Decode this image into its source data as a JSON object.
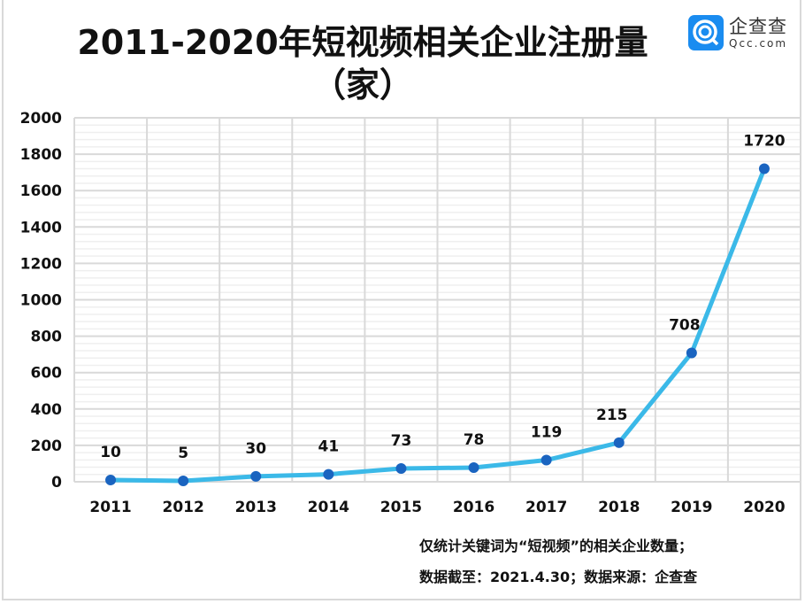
{
  "header": {
    "title_line1": "2011-2020年短视频相关企业注册量",
    "title_line2": "（家）",
    "logo_cn": "企查查",
    "logo_en": "Qcc.com"
  },
  "notes": {
    "line1": "仅统计关键词为“短视频”的相关企业数量；",
    "line2": "数据截至：2021.4.30；数据来源：企查查"
  },
  "colors": {
    "line": "#3bb9e8",
    "marker": "#1a64c0",
    "grid_major": "#d9d9d9",
    "grid_minor": "#efefef",
    "logo": "#1a8cf0"
  },
  "chart_data": {
    "type": "line",
    "title": "2011-2020年短视频相关企业注册量（家）",
    "categories": [
      "2011",
      "2012",
      "2013",
      "2014",
      "2015",
      "2016",
      "2017",
      "2018",
      "2019",
      "2020"
    ],
    "values": [
      10,
      5,
      30,
      41,
      73,
      78,
      119,
      215,
      708,
      1720
    ],
    "ylim": [
      0,
      2000
    ],
    "yticks": [
      0,
      200,
      400,
      600,
      800,
      1000,
      1200,
      1400,
      1600,
      1800,
      2000
    ],
    "minor_step": 40,
    "grid": true,
    "data_labels": true
  }
}
